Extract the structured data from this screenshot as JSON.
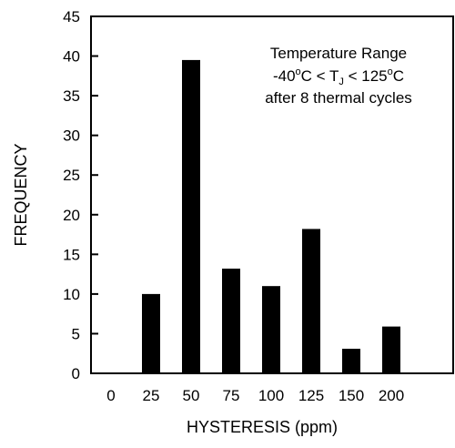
{
  "chart_data": {
    "type": "bar",
    "categories": [
      "0",
      "25",
      "50",
      "75",
      "100",
      "125",
      "150",
      "200"
    ],
    "values": [
      0,
      10,
      39.5,
      13.2,
      11,
      18.2,
      3.1,
      5.9
    ],
    "xlabel": "HYSTERESIS (ppm)",
    "ylabel": "FREQUENCY",
    "ylim": [
      0,
      45
    ],
    "yticks": [
      "0",
      "5",
      "10",
      "15",
      "20",
      "25",
      "30",
      "35",
      "40",
      "45"
    ],
    "grid": false,
    "bar_color": "#000000",
    "annotation": {
      "line1": "Temperature Range",
      "line2_prefix": "-40",
      "line2_deg1": "o",
      "line2_mid": "C < T",
      "line2_sub": "J",
      "line2_mid2": " < 125",
      "line2_deg2": "o",
      "line2_suffix": "C",
      "line3": "after 8 thermal cycles"
    }
  }
}
